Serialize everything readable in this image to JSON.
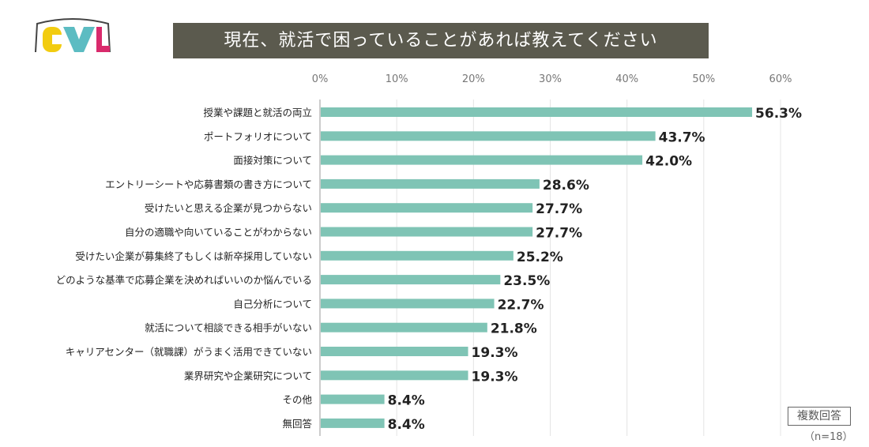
{
  "title": "現在、就活で困っていることがあれば教えてください",
  "logo_text": "CWL",
  "note": "複数回答",
  "sample": "（n=18）",
  "chart_data": {
    "type": "bar",
    "orientation": "horizontal",
    "title": "現在、就活で困っていることがあれば教えてください",
    "xlim": [
      0,
      60
    ],
    "ticks": [
      0,
      10,
      20,
      30,
      40,
      50,
      60
    ],
    "tick_labels": [
      "0%",
      "10%",
      "20%",
      "30%",
      "40%",
      "50%",
      "60%"
    ],
    "grid": true,
    "bar_color": "#7fc4b5",
    "categories": [
      "授業や課題と就活の両立",
      "ポートフォリオについて",
      "面接対策について",
      "エントリーシートや応募書類の書き方について",
      "受けたいと思える企業が見つからない",
      "自分の適職や向いていることがわからない",
      "受けたい企業が募集終了もしくは新卒採用していない",
      "どのような基準で応募企業を決めればいいのか悩んでいる",
      "自己分析について",
      "就活について相談できる相手がいない",
      "キャリアセンター（就職課）がうまく活用できていない",
      "業界研究や企業研究について",
      "その他",
      "無回答"
    ],
    "values": [
      56.3,
      43.7,
      42.0,
      28.6,
      27.7,
      27.7,
      25.2,
      23.5,
      22.7,
      21.8,
      19.3,
      19.3,
      8.4,
      8.4
    ],
    "value_labels": [
      "56.3%",
      "43.7%",
      "42.0%",
      "28.6%",
      "27.7%",
      "27.7%",
      "25.2%",
      "23.5%",
      "22.7%",
      "21.8%",
      "19.3%",
      "19.3%",
      "8.4%",
      "8.4%"
    ]
  }
}
